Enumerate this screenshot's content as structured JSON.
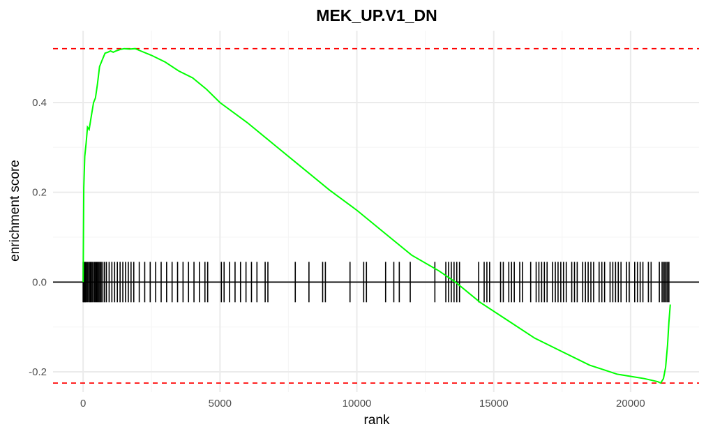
{
  "chart_data": {
    "type": "line",
    "title": "MEK_UP.V1_DN",
    "xlabel": "rank",
    "ylabel": "enrichment score",
    "xlim": [
      -1100,
      22500
    ],
    "ylim": [
      -0.245,
      0.56
    ],
    "x_ticks": [
      0,
      5000,
      10000,
      15000,
      20000
    ],
    "y_ticks": [
      -0.2,
      0,
      0.2,
      0.4
    ],
    "x_tick_labels": [
      "0",
      "5000",
      "10000",
      "15000",
      "20000"
    ],
    "y_tick_labels": [
      "-0.2",
      "0.0",
      "0.2",
      "0.4"
    ],
    "grid": true,
    "max_es": 0.52,
    "min_es": -0.225,
    "colors": {
      "curve": "#00ff00",
      "threshold": "#ff0000",
      "ticks": "#000000",
      "baseline": "#000000"
    },
    "series": [
      {
        "values": [
          {
            "x": 0,
            "y": 0.0
          },
          {
            "x": 25,
            "y": 0.21
          },
          {
            "x": 60,
            "y": 0.28
          },
          {
            "x": 110,
            "y": 0.31
          },
          {
            "x": 160,
            "y": 0.345
          },
          {
            "x": 220,
            "y": 0.34
          },
          {
            "x": 300,
            "y": 0.37
          },
          {
            "x": 380,
            "y": 0.4
          },
          {
            "x": 450,
            "y": 0.41
          },
          {
            "x": 520,
            "y": 0.44
          },
          {
            "x": 600,
            "y": 0.48
          },
          {
            "x": 700,
            "y": 0.495
          },
          {
            "x": 800,
            "y": 0.51
          },
          {
            "x": 900,
            "y": 0.512
          },
          {
            "x": 1000,
            "y": 0.515
          },
          {
            "x": 1100,
            "y": 0.512
          },
          {
            "x": 1200,
            "y": 0.515
          },
          {
            "x": 1350,
            "y": 0.518
          },
          {
            "x": 1500,
            "y": 0.52
          },
          {
            "x": 1700,
            "y": 0.519
          },
          {
            "x": 1900,
            "y": 0.52
          },
          {
            "x": 2100,
            "y": 0.515
          },
          {
            "x": 2500,
            "y": 0.505
          },
          {
            "x": 3000,
            "y": 0.49
          },
          {
            "x": 3500,
            "y": 0.47
          },
          {
            "x": 4000,
            "y": 0.455
          },
          {
            "x": 4500,
            "y": 0.43
          },
          {
            "x": 5000,
            "y": 0.4
          },
          {
            "x": 6000,
            "y": 0.355
          },
          {
            "x": 7000,
            "y": 0.305
          },
          {
            "x": 8000,
            "y": 0.255
          },
          {
            "x": 9000,
            "y": 0.205
          },
          {
            "x": 10000,
            "y": 0.16
          },
          {
            "x": 11000,
            "y": 0.11
          },
          {
            "x": 12000,
            "y": 0.06
          },
          {
            "x": 13000,
            "y": 0.025
          },
          {
            "x": 13600,
            "y": 0.0
          },
          {
            "x": 14500,
            "y": -0.045
          },
          {
            "x": 15500,
            "y": -0.085
          },
          {
            "x": 16500,
            "y": -0.125
          },
          {
            "x": 17500,
            "y": -0.155
          },
          {
            "x": 18500,
            "y": -0.185
          },
          {
            "x": 19000,
            "y": -0.195
          },
          {
            "x": 19500,
            "y": -0.205
          },
          {
            "x": 20000,
            "y": -0.21
          },
          {
            "x": 20500,
            "y": -0.215
          },
          {
            "x": 21000,
            "y": -0.222
          },
          {
            "x": 21100,
            "y": -0.225
          },
          {
            "x": 21200,
            "y": -0.215
          },
          {
            "x": 21280,
            "y": -0.19
          },
          {
            "x": 21350,
            "y": -0.14
          },
          {
            "x": 21400,
            "y": -0.09
          },
          {
            "x": 21450,
            "y": -0.05
          }
        ]
      }
    ],
    "hit_positions": [
      0,
      25,
      50,
      80,
      100,
      140,
      180,
      230,
      260,
      290,
      330,
      370,
      420,
      460,
      500,
      540,
      580,
      620,
      660,
      720,
      780,
      850,
      950,
      1050,
      1150,
      1250,
      1350,
      1450,
      1550,
      1650,
      1750,
      1850,
      2050,
      2250,
      2450,
      2650,
      2850,
      3050,
      3250,
      3450,
      3650,
      3850,
      4050,
      4250,
      4450,
      4550,
      5050,
      5150,
      5350,
      5550,
      5750,
      5950,
      6150,
      6350,
      6650,
      6750,
      7750,
      8250,
      8750,
      8850,
      9750,
      10250,
      10350,
      11050,
      11350,
      11550,
      11950,
      12850,
      13250,
      13350,
      13450,
      13550,
      13650,
      13750,
      14450,
      14650,
      14750,
      14850,
      15250,
      15350,
      15550,
      15650,
      15750,
      15950,
      16050,
      16350,
      16550,
      16650,
      16750,
      16850,
      16950,
      17150,
      17250,
      17350,
      17450,
      17550,
      17650,
      17850,
      17950,
      18050,
      18250,
      18350,
      18450,
      18550,
      18650,
      18850,
      18950,
      19050,
      19250,
      19350,
      19450,
      19550,
      19650,
      19850,
      19950,
      20150,
      20250,
      20350,
      20450,
      20650,
      20750,
      21050,
      21150,
      21200,
      21250,
      21300,
      21350,
      21400
    ]
  }
}
